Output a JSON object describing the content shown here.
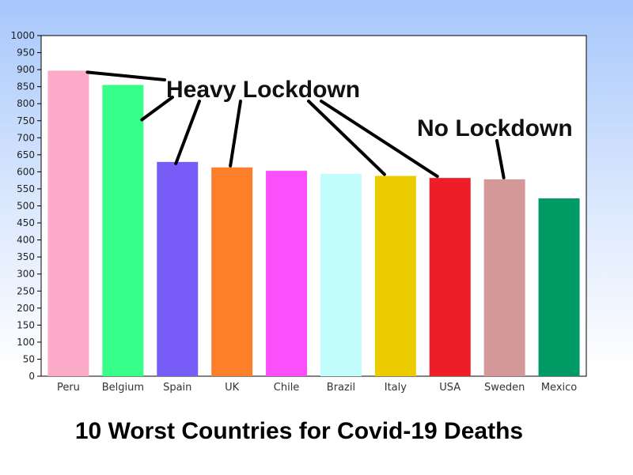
{
  "chart_data": {
    "type": "bar",
    "title": "10 Worst Countries for Covid-19 Deaths",
    "categories": [
      "Peru",
      "Belgium",
      "Spain",
      "UK",
      "Chile",
      "Brazil",
      "Italy",
      "USA",
      "Sweden",
      "Mexico"
    ],
    "values": [
      897,
      855,
      629,
      613,
      603,
      594,
      588,
      582,
      578,
      522
    ],
    "colors": [
      "#fbaac8",
      "#37fd89",
      "#785cf7",
      "#fd7f2a",
      "#fb4ffb",
      "#c3fdfb",
      "#eccc00",
      "#ee1e28",
      "#d49898",
      "#009b65"
    ],
    "ylim": [
      0,
      1000
    ],
    "yticks": [
      0,
      50,
      100,
      150,
      200,
      250,
      300,
      350,
      400,
      450,
      500,
      550,
      600,
      650,
      700,
      750,
      800,
      850,
      900,
      950,
      1000
    ],
    "grid": false,
    "annotations": [
      {
        "text": "Heavy Lockdown",
        "targets": [
          "Peru",
          "Belgium",
          "Spain",
          "UK",
          "Italy",
          "USA"
        ]
      },
      {
        "text": "No Lockdown",
        "targets": [
          "Sweden"
        ]
      }
    ]
  }
}
